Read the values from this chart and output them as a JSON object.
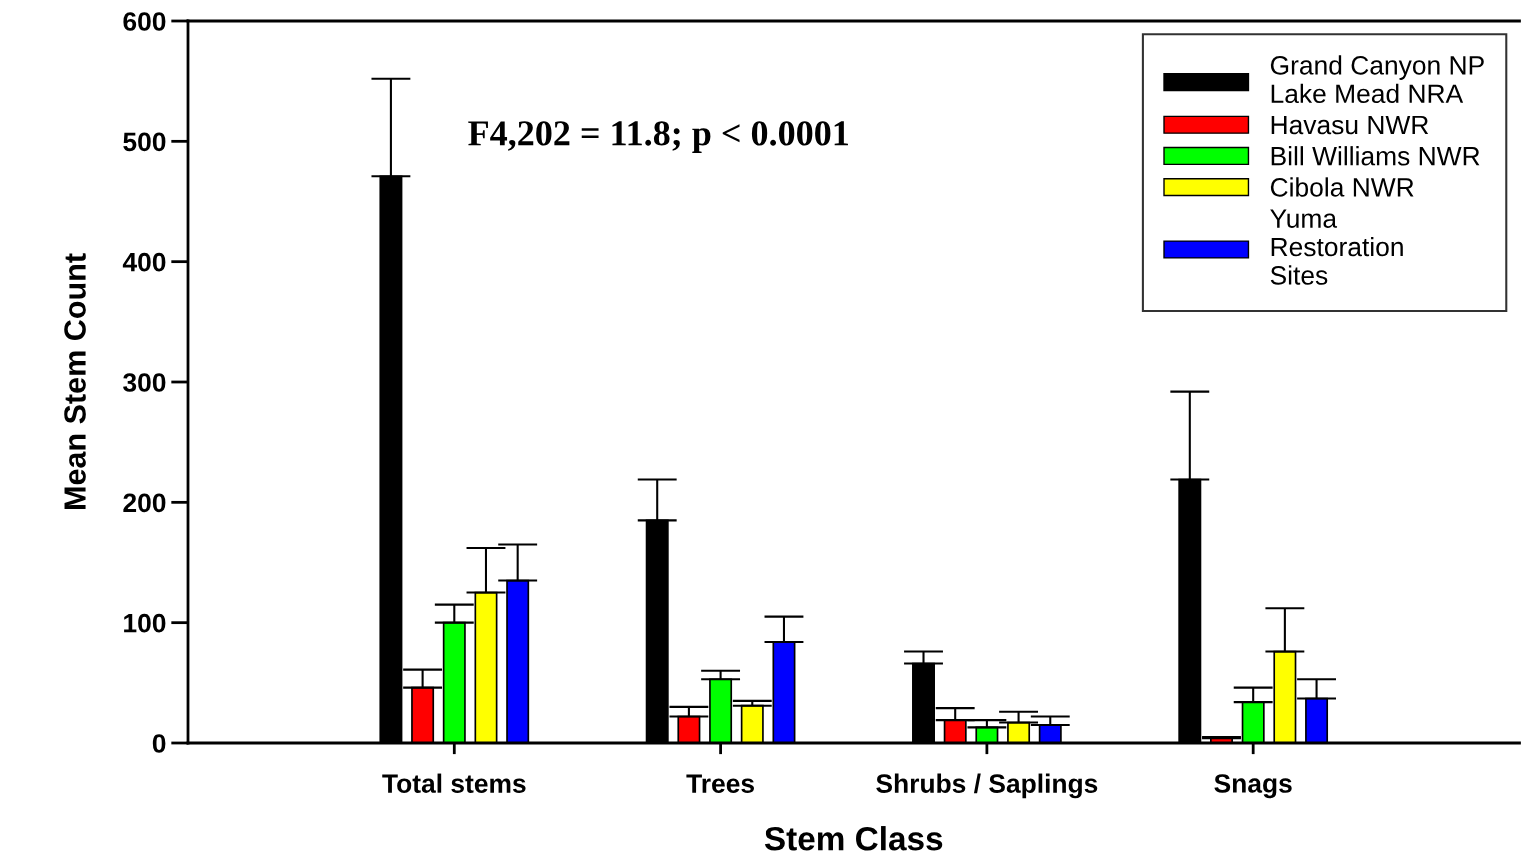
{
  "chart_data": {
    "type": "bar",
    "xlabel": "Stem Class",
    "ylabel": "Mean Stem Count",
    "categories": [
      "Total stems",
      "Trees",
      "Shrubs / Saplings",
      "Snags"
    ],
    "series": [
      {
        "name": "Grand Canyon NP\nLake Mead NRA",
        "color": "#000000",
        "values": [
          471,
          185,
          66,
          219
        ],
        "errors": [
          [
            471,
            552
          ],
          [
            185,
            219
          ],
          [
            66,
            76
          ],
          [
            219,
            292
          ]
        ]
      },
      {
        "name": "Havasu NWR",
        "color": "#ff0000",
        "values": [
          46,
          22,
          19,
          4
        ],
        "errors": [
          [
            46,
            61
          ],
          [
            22,
            30
          ],
          [
            19,
            29
          ],
          [
            4,
            5
          ]
        ]
      },
      {
        "name": "Bill Williams NWR",
        "color": "#00ff00",
        "values": [
          100,
          53,
          13,
          34
        ],
        "errors": [
          [
            100,
            115
          ],
          [
            53,
            60
          ],
          [
            13,
            19
          ],
          [
            34,
            46
          ]
        ]
      },
      {
        "name": "Cibola NWR",
        "color": "#ffff00",
        "values": [
          125,
          31,
          17,
          76
        ],
        "errors": [
          [
            125,
            162
          ],
          [
            31,
            35
          ],
          [
            17,
            26
          ],
          [
            76,
            112
          ]
        ]
      },
      {
        "name": "Yuma\nRestoration\nSites",
        "color": "#0000ff",
        "values": [
          135,
          84,
          15,
          37
        ],
        "errors": [
          [
            135,
            165
          ],
          [
            84,
            105
          ],
          [
            15,
            22
          ],
          [
            37,
            53
          ]
        ]
      }
    ],
    "ylim": [
      0,
      600
    ],
    "yticks": [
      0,
      100,
      200,
      300,
      400,
      500,
      600
    ],
    "annotations": [
      "F4,202 = 11.8; p < 0.0001"
    ],
    "legend": "top right",
    "grid": false
  }
}
